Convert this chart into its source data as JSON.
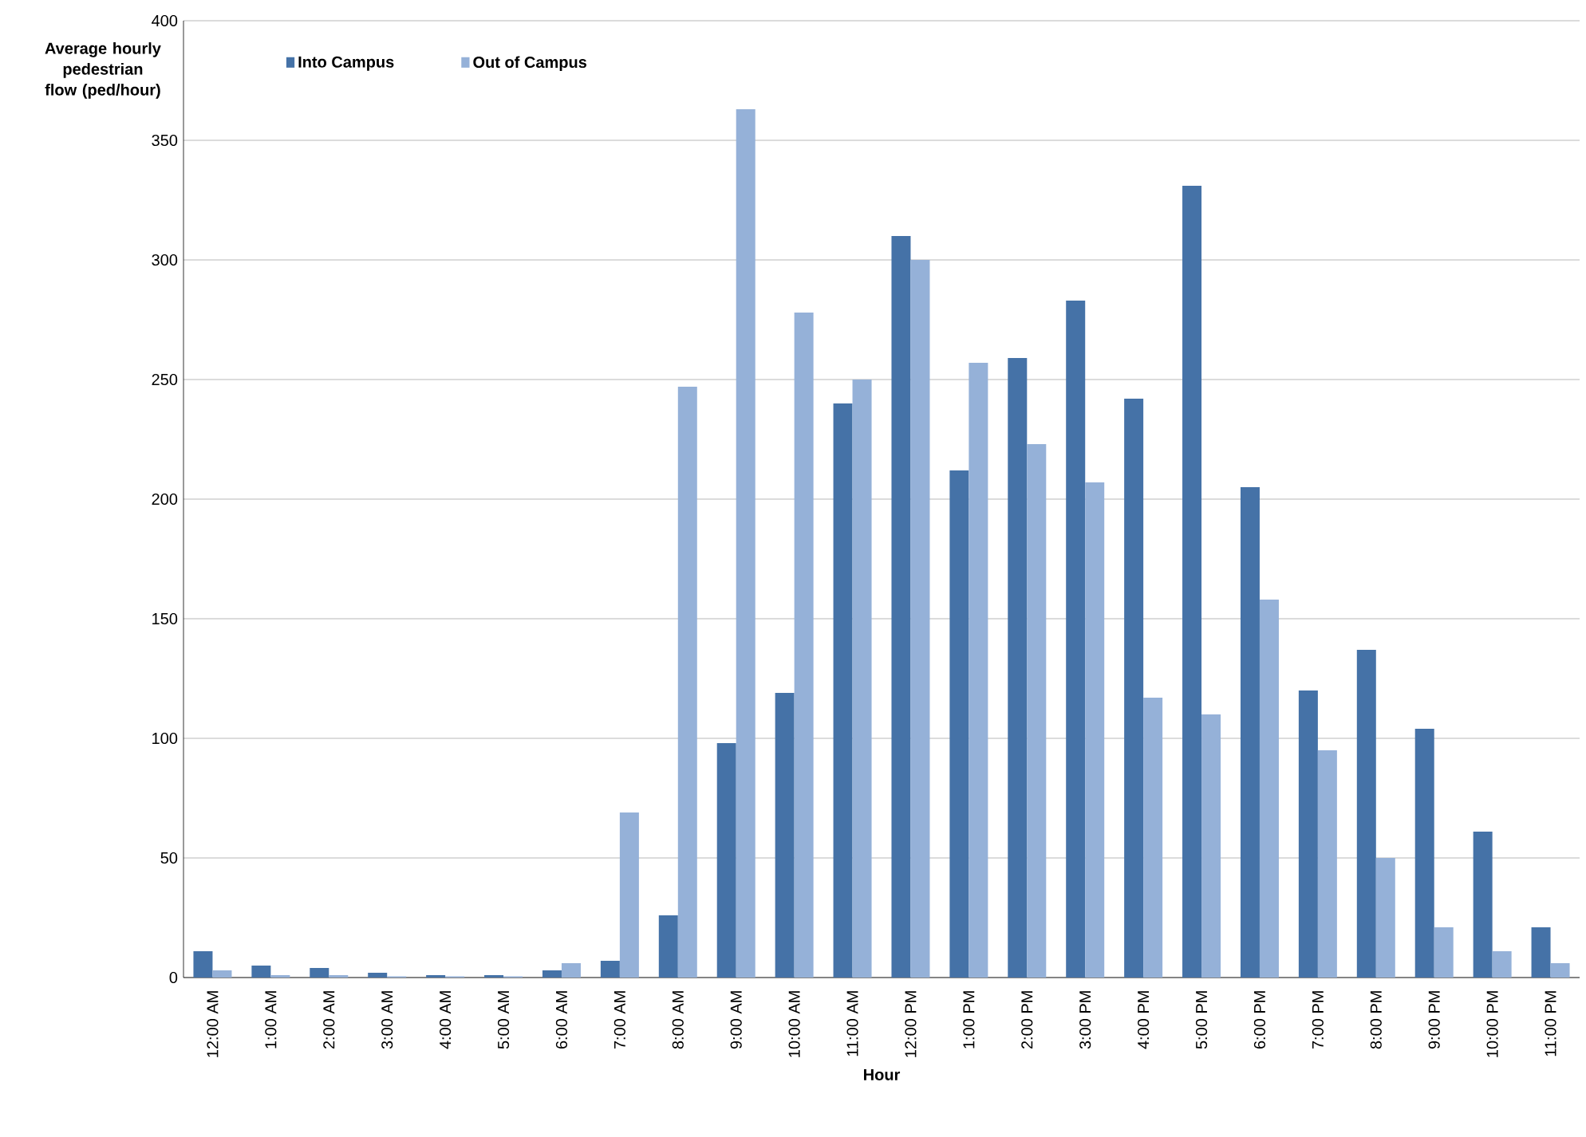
{
  "chart_data": {
    "type": "bar",
    "xlabel": "Hour",
    "ylabel": "Average hourly pedestrian flow (ped/hour)",
    "categories": [
      "12:00 AM",
      "1:00 AM",
      "2:00 AM",
      "3:00 AM",
      "4:00 AM",
      "5:00 AM",
      "6:00 AM",
      "7:00 AM",
      "8:00 AM",
      "9:00 AM",
      "10:00 AM",
      "11:00 AM",
      "12:00 PM",
      "1:00 PM",
      "2:00 PM",
      "3:00 PM",
      "4:00 PM",
      "5:00 PM",
      "6:00 PM",
      "7:00 PM",
      "8:00 PM",
      "9:00 PM",
      "10:00 PM",
      "11:00 PM"
    ],
    "series": [
      {
        "name": "Into Campus",
        "color": "#4572a7",
        "values": [
          11,
          5,
          4,
          2,
          1,
          1,
          3,
          7,
          26,
          98,
          119,
          240,
          310,
          212,
          259,
          283,
          242,
          331,
          205,
          120,
          137,
          104,
          61,
          21
        ]
      },
      {
        "name": "Out of Campus",
        "color": "#95b1d8",
        "values": [
          3,
          1,
          1,
          0.5,
          0.5,
          0.5,
          6,
          69,
          247,
          363,
          278,
          250,
          300,
          257,
          223,
          207,
          117,
          110,
          158,
          95,
          50,
          21,
          11,
          6
        ]
      }
    ],
    "ylim": [
      0,
      400
    ],
    "yticks": [
      0,
      50,
      100,
      150,
      200,
      250,
      300,
      350,
      400
    ],
    "grid": "y",
    "legend": "top left"
  }
}
